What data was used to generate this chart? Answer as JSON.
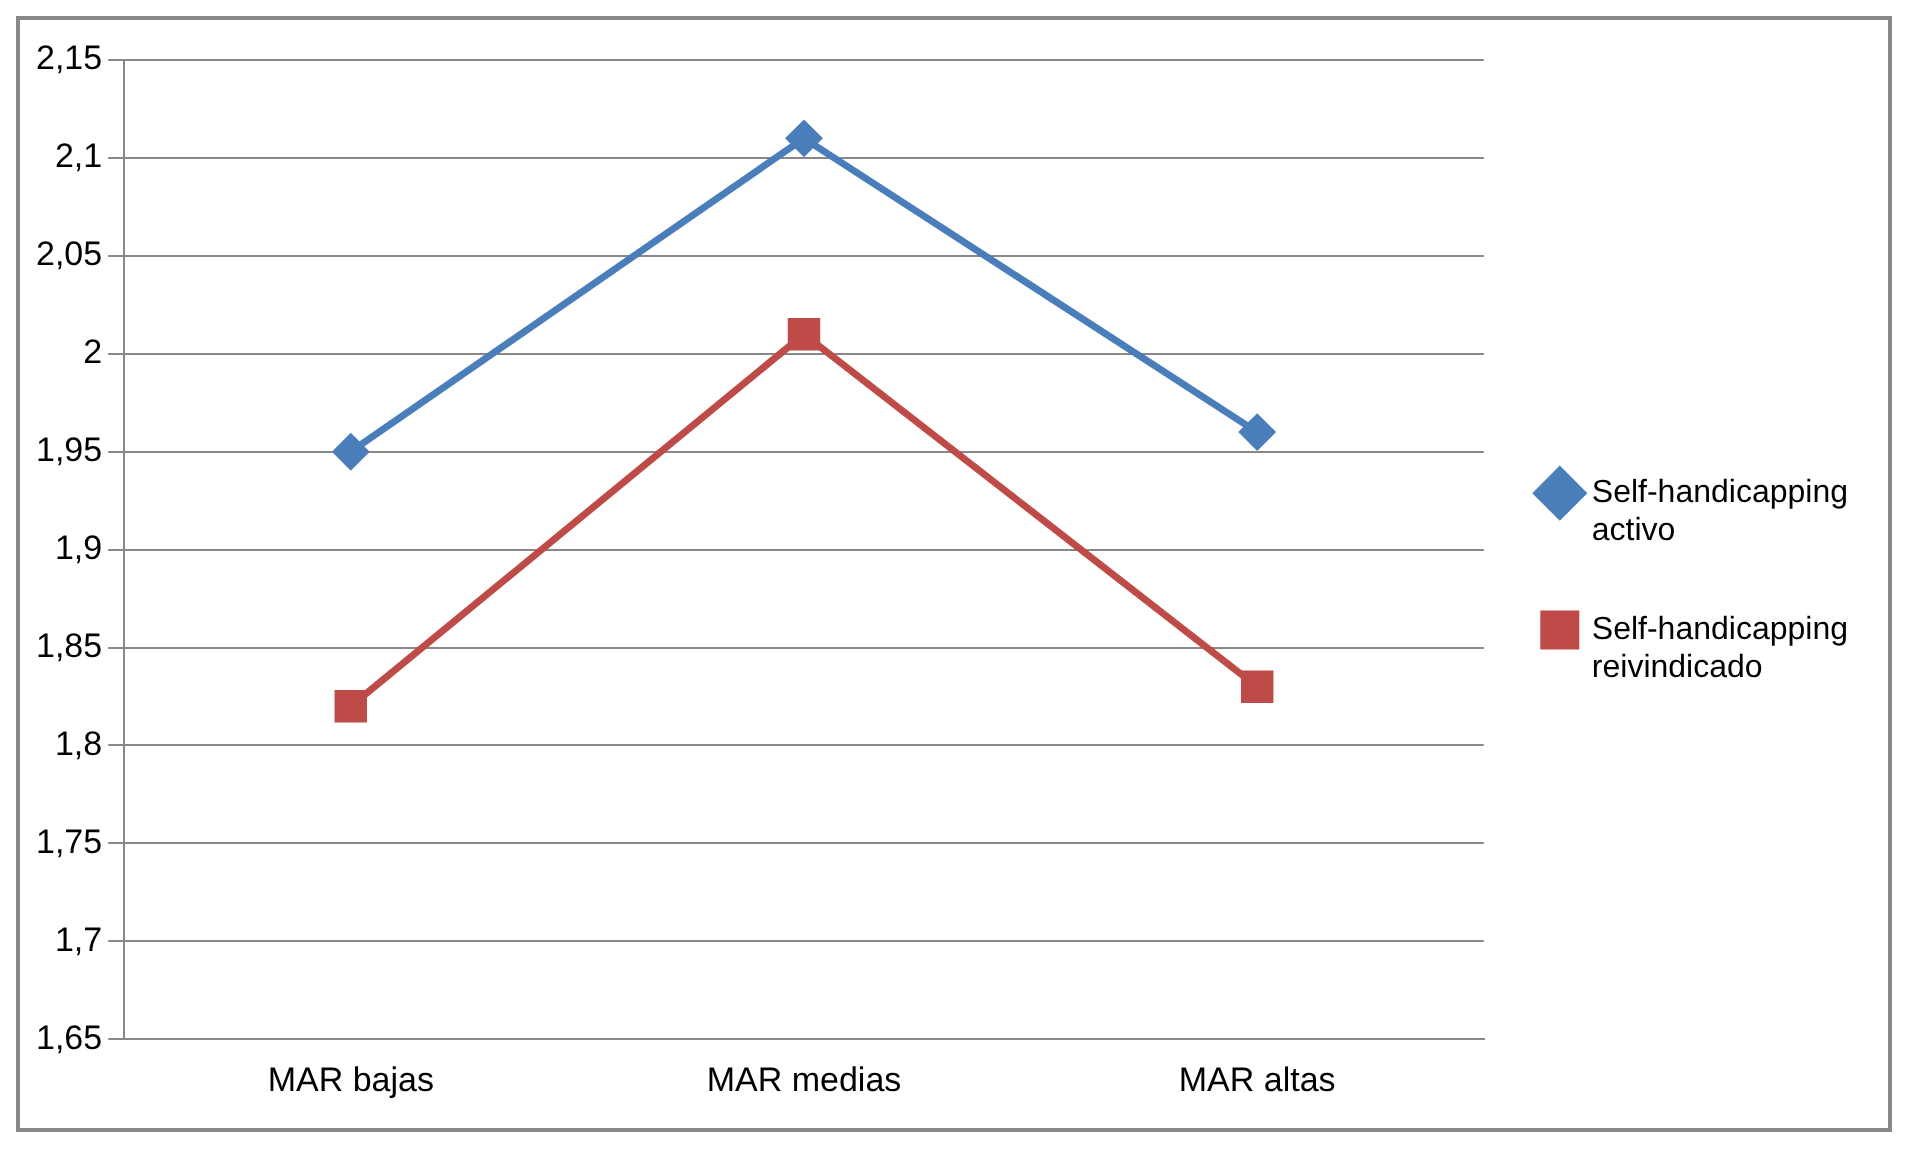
{
  "chart_data": {
    "type": "line",
    "categories": [
      "MAR bajas",
      "MAR medias",
      "MAR altas"
    ],
    "series": [
      {
        "name": "Self-handicapping activo",
        "color": "#4a7ebb",
        "marker": "diamond",
        "values": [
          1.95,
          2.11,
          1.96
        ]
      },
      {
        "name": "Self-handicapping reivindicado",
        "color": "#be4b48",
        "marker": "square",
        "values": [
          1.82,
          2.01,
          1.83
        ]
      }
    ],
    "ylim": [
      1.65,
      2.15
    ],
    "yticks": [
      {
        "value": 1.65,
        "label": "1,65"
      },
      {
        "value": 1.7,
        "label": "1,7"
      },
      {
        "value": 1.75,
        "label": "1,75"
      },
      {
        "value": 1.8,
        "label": "1,8"
      },
      {
        "value": 1.85,
        "label": "1,85"
      },
      {
        "value": 1.9,
        "label": "1,9"
      },
      {
        "value": 1.95,
        "label": "1,95"
      },
      {
        "value": 2,
        "label": "2"
      },
      {
        "value": 2.05,
        "label": "2,05"
      },
      {
        "value": 2.1,
        "label": "2,1"
      },
      {
        "value": 2.15,
        "label": "2,15"
      }
    ],
    "grid": "y",
    "legend": "right",
    "line_style": "solid"
  }
}
